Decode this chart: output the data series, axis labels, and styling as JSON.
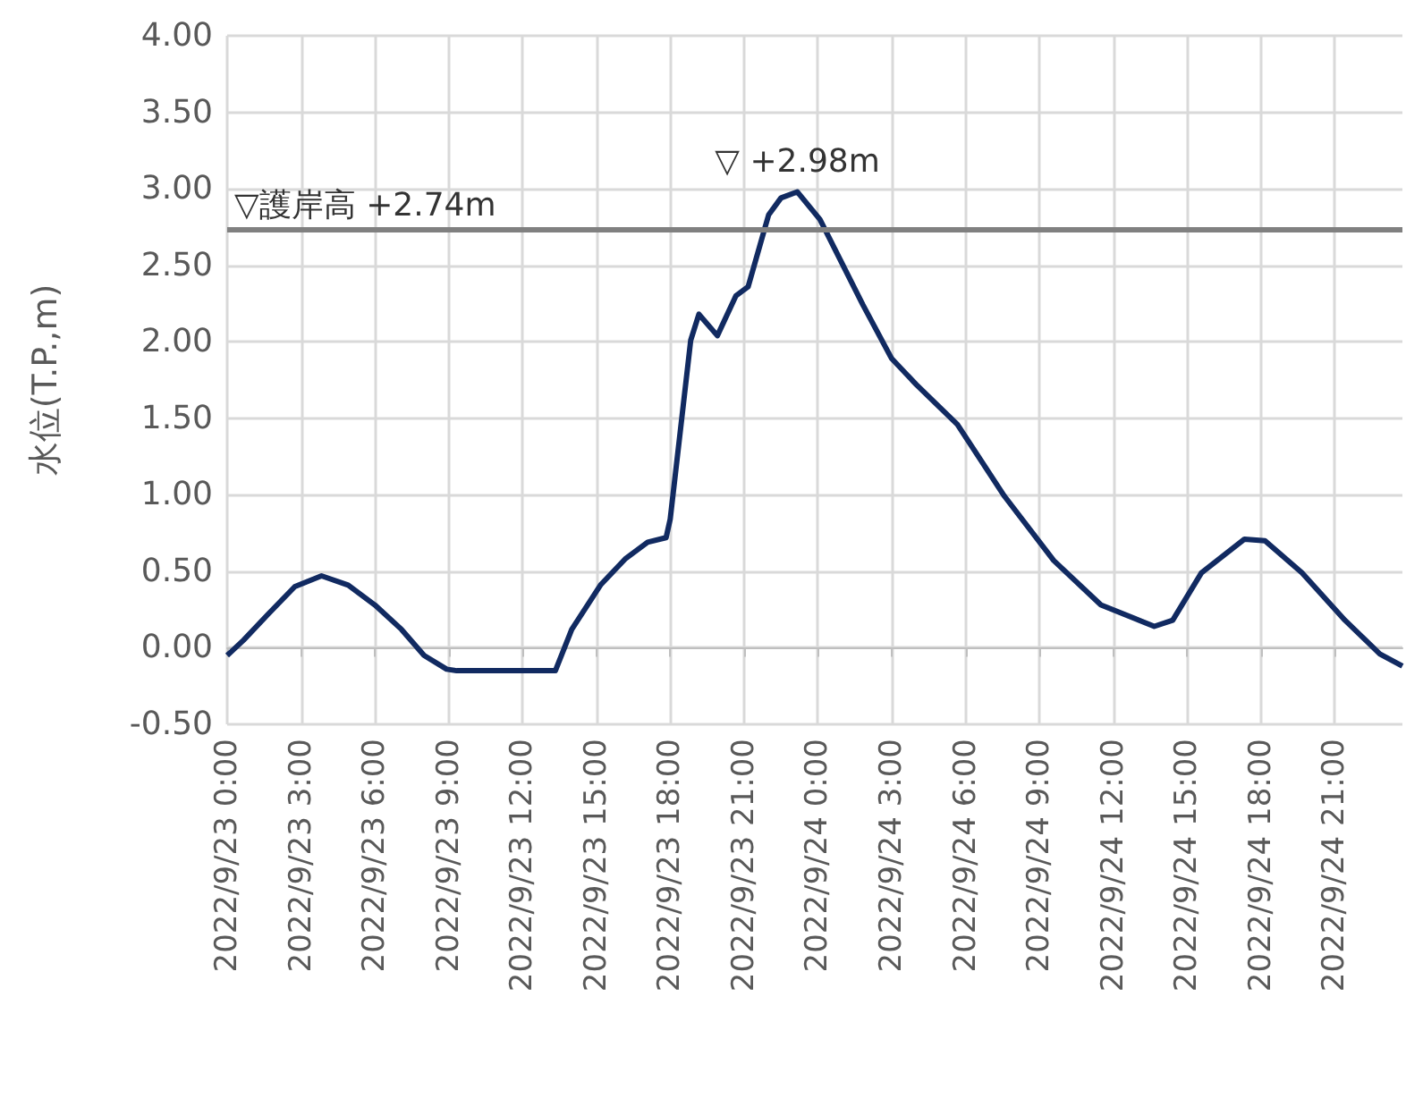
{
  "chart_data": {
    "type": "line",
    "ylabel": "水位(T.P.,m)",
    "x": [
      "2022-09-23T00:00",
      "2022-09-23T00:40",
      "2022-09-23T01:40",
      "2022-09-23T02:45",
      "2022-09-23T03:50",
      "2022-09-23T04:55",
      "2022-09-23T06:00",
      "2022-09-23T07:05",
      "2022-09-23T08:00",
      "2022-09-23T08:55",
      "2022-09-23T09:20",
      "2022-09-23T13:20",
      "2022-09-23T14:00",
      "2022-09-23T15:10",
      "2022-09-23T16:10",
      "2022-09-23T17:05",
      "2022-09-23T17:50",
      "2022-09-23T18:00",
      "2022-09-23T18:50",
      "2022-09-23T19:10",
      "2022-09-23T19:55",
      "2022-09-23T20:40",
      "2022-09-23T21:10",
      "2022-09-23T22:00",
      "2022-09-23T22:30",
      "2022-09-23T23:10",
      "2022-09-24T00:05",
      "2022-09-24T01:05",
      "2022-09-24T01:50",
      "2022-09-24T03:00",
      "2022-09-24T04:00",
      "2022-09-24T05:40",
      "2022-09-24T07:35",
      "2022-09-24T09:35",
      "2022-09-24T11:30",
      "2022-09-24T13:40",
      "2022-09-24T14:25",
      "2022-09-24T15:35",
      "2022-09-24T17:20",
      "2022-09-24T18:10",
      "2022-09-24T19:40",
      "2022-09-24T21:25",
      "2022-09-24T22:50",
      "2022-09-24T23:45"
    ],
    "series": [
      {
        "color": "#112a61",
        "values": [
          -0.05,
          0.05,
          0.22,
          0.4,
          0.47,
          0.41,
          0.28,
          0.12,
          -0.05,
          -0.14,
          -0.15,
          -0.15,
          0.12,
          0.41,
          0.58,
          0.69,
          0.72,
          0.84,
          2.01,
          2.18,
          2.04,
          2.3,
          2.36,
          2.83,
          2.94,
          2.98,
          2.8,
          2.48,
          2.24,
          1.89,
          1.72,
          1.46,
          0.99,
          0.57,
          0.28,
          0.14,
          0.18,
          0.49,
          0.71,
          0.7,
          0.49,
          0.18,
          -0.04,
          -0.12
        ]
      }
    ],
    "xlim": [
      "2022-09-23T00:00",
      "2022-09-24T23:45"
    ],
    "xticks": [
      {
        "value": "2022-09-23T00:00",
        "label": "2022/9/23 0:00"
      },
      {
        "value": "2022-09-23T03:00",
        "label": "2022/9/23 3:00"
      },
      {
        "value": "2022-09-23T06:00",
        "label": "2022/9/23 6:00"
      },
      {
        "value": "2022-09-23T09:00",
        "label": "2022/9/23 9:00"
      },
      {
        "value": "2022-09-23T12:00",
        "label": "2022/9/23 12:00"
      },
      {
        "value": "2022-09-23T15:00",
        "label": "2022/9/23 15:00"
      },
      {
        "value": "2022-09-23T18:00",
        "label": "2022/9/23 18:00"
      },
      {
        "value": "2022-09-23T21:00",
        "label": "2022/9/23 21:00"
      },
      {
        "value": "2022-09-24T00:00",
        "label": "2022/9/24 0:00"
      },
      {
        "value": "2022-09-24T03:00",
        "label": "2022/9/24 3:00"
      },
      {
        "value": "2022-09-24T06:00",
        "label": "2022/9/24 6:00"
      },
      {
        "value": "2022-09-24T09:00",
        "label": "2022/9/24 9:00"
      },
      {
        "value": "2022-09-24T12:00",
        "label": "2022/9/24 12:00"
      },
      {
        "value": "2022-09-24T15:00",
        "label": "2022/9/24 15:00"
      },
      {
        "value": "2022-09-24T18:00",
        "label": "2022/9/24 18:00"
      },
      {
        "value": "2022-09-24T21:00",
        "label": "2022/9/24 21:00"
      }
    ],
    "ylim": [
      -0.5,
      4
    ],
    "yticks": [
      {
        "value": -0.5,
        "label": "-0.50"
      },
      {
        "value": 0,
        "label": "0.00"
      },
      {
        "value": 0.5,
        "label": "0.50"
      },
      {
        "value": 1,
        "label": "1.00"
      },
      {
        "value": 1.5,
        "label": "1.50"
      },
      {
        "value": 2,
        "label": "2.00"
      },
      {
        "value": 2.5,
        "label": "2.50"
      },
      {
        "value": 3,
        "label": "3.00"
      },
      {
        "value": 3.5,
        "label": "3.50"
      },
      {
        "value": 4,
        "label": "4.00"
      }
    ],
    "grid": true,
    "ref_lines": [
      {
        "axis": "y",
        "value": 2.74,
        "label": "▽護岸高 +2.74m",
        "color": "#808080"
      }
    ],
    "annotations": [
      {
        "text": "▽ +2.98m",
        "x": "2022-09-23T23:10",
        "y": 2.98
      }
    ]
  }
}
